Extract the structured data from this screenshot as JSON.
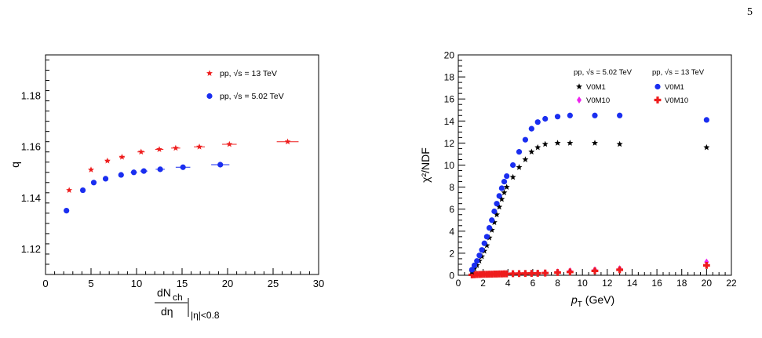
{
  "page_number": "5",
  "chart_data": [
    {
      "type": "scatter",
      "title": "",
      "ylabel": "q",
      "xlabel_num": "dN",
      "xlabel_num_sub": "ch",
      "xlabel_den": "dη",
      "xlabel_cond": "|η|<0.8",
      "xlim": [
        0,
        30
      ],
      "ylim": [
        1.11,
        1.196
      ],
      "xticks": [
        "0",
        "5",
        "10",
        "15",
        "20",
        "25",
        "30"
      ],
      "yticks": [
        "1.12",
        "1.14",
        "1.16",
        "1.18"
      ],
      "legend_position": "top-right",
      "series": [
        {
          "name_prefix": "pp, ",
          "name_suffix": " = 13 TeV",
          "marker": "star",
          "color": "#ee1c1c",
          "x": [
            2.6,
            5.0,
            6.8,
            8.4,
            10.5,
            12.5,
            14.3,
            16.9,
            20.2,
            26.6
          ],
          "y": [
            1.143,
            1.151,
            1.1545,
            1.156,
            1.158,
            1.159,
            1.1595,
            1.16,
            1.161,
            1.162
          ],
          "xerr": [
            0.15,
            0.15,
            0.25,
            0.3,
            0.4,
            0.45,
            0.5,
            0.6,
            0.8,
            1.2
          ]
        },
        {
          "name_prefix": "pp, ",
          "name_suffix": " = 5.02 TeV",
          "marker": "circle",
          "color": "#1a2ef0",
          "x": [
            2.3,
            4.1,
            5.3,
            6.6,
            8.3,
            9.7,
            10.8,
            12.6,
            15.1,
            19.2
          ],
          "y": [
            1.135,
            1.143,
            1.146,
            1.1475,
            1.149,
            1.15,
            1.1505,
            1.1512,
            1.152,
            1.153
          ],
          "xerr": [
            0.1,
            0.15,
            0.2,
            0.25,
            0.3,
            0.35,
            0.4,
            0.5,
            0.8,
            1.0
          ]
        }
      ]
    },
    {
      "type": "scatter",
      "title": "",
      "ylabel": "χ²/NDF",
      "xlabel": "p",
      "xlabel_sub": "T",
      "xlabel_unit": " (GeV)",
      "xlim": [
        0,
        22
      ],
      "ylim": [
        0,
        20
      ],
      "xticks": [
        "0",
        "2",
        "4",
        "6",
        "8",
        "10",
        "12",
        "14",
        "16",
        "18",
        "20",
        "22"
      ],
      "yticks": [
        "0",
        "2",
        "4",
        "6",
        "8",
        "10",
        "12",
        "14",
        "16",
        "18",
        "20"
      ],
      "legend_position": "top-right",
      "legend_headers": [
        {
          "prefix": "pp, ",
          "suffix": " = 5.02 TeV"
        },
        {
          "prefix": "pp, ",
          "suffix": " = 13 TeV"
        }
      ],
      "series": [
        {
          "name": "V0M1",
          "energy": "5.02 TeV",
          "marker": "star",
          "color": "#000000",
          "x": [
            1.1,
            1.3,
            1.5,
            1.7,
            1.9,
            2.1,
            2.3,
            2.5,
            2.7,
            2.9,
            3.1,
            3.3,
            3.5,
            3.7,
            3.9,
            4.4,
            4.9,
            5.4,
            5.9,
            6.4,
            7.0,
            8.0,
            9.0,
            11.0,
            13.0,
            20.0
          ],
          "y": [
            0.3,
            0.6,
            0.9,
            1.3,
            1.7,
            2.2,
            2.7,
            3.4,
            4.1,
            4.8,
            5.5,
            6.2,
            6.9,
            7.5,
            8.0,
            8.9,
            9.8,
            10.5,
            11.2,
            11.6,
            11.9,
            12.0,
            12.0,
            12.0,
            11.9,
            11.6
          ]
        },
        {
          "name": "V0M10",
          "energy": "5.02 TeV",
          "marker": "diamond",
          "color": "#ee22ee",
          "x": [
            1.1,
            1.3,
            1.5,
            1.7,
            1.9,
            2.1,
            2.3,
            2.5,
            2.7,
            2.9,
            3.1,
            3.3,
            3.5,
            3.7,
            3.9,
            4.4,
            4.9,
            5.4,
            5.9,
            6.4,
            7.0,
            8.0,
            9.0,
            11.0,
            13.0,
            20.0
          ],
          "y": [
            0.05,
            0.06,
            0.07,
            0.08,
            0.09,
            0.1,
            0.1,
            0.11,
            0.12,
            0.12,
            0.13,
            0.13,
            0.14,
            0.14,
            0.15,
            0.16,
            0.17,
            0.18,
            0.19,
            0.2,
            0.22,
            0.3,
            0.4,
            0.5,
            0.6,
            1.2
          ]
        },
        {
          "name": "V0M1",
          "energy": "13 TeV",
          "marker": "circle",
          "color": "#1a2ef0",
          "x": [
            1.1,
            1.3,
            1.5,
            1.7,
            1.9,
            2.1,
            2.3,
            2.5,
            2.7,
            2.9,
            3.1,
            3.3,
            3.5,
            3.7,
            3.9,
            4.4,
            4.9,
            5.4,
            5.9,
            6.4,
            7.0,
            8.0,
            9.0,
            11.0,
            13.0,
            20.0
          ],
          "y": [
            0.5,
            0.9,
            1.3,
            1.8,
            2.3,
            2.9,
            3.5,
            4.3,
            5.0,
            5.8,
            6.5,
            7.2,
            7.9,
            8.5,
            9.0,
            10.0,
            11.2,
            12.3,
            13.3,
            13.9,
            14.2,
            14.4,
            14.5,
            14.5,
            14.5,
            14.1
          ]
        },
        {
          "name": "V0M10",
          "energy": "13 TeV",
          "marker": "cross",
          "color": "#ee1c1c",
          "x": [
            1.1,
            1.3,
            1.5,
            1.7,
            1.9,
            2.1,
            2.3,
            2.5,
            2.7,
            2.9,
            3.1,
            3.3,
            3.5,
            3.7,
            3.9,
            4.4,
            4.9,
            5.4,
            5.9,
            6.4,
            7.0,
            8.0,
            9.0,
            11.0,
            13.0,
            20.0
          ],
          "y": [
            0.04,
            0.05,
            0.06,
            0.07,
            0.08,
            0.09,
            0.09,
            0.1,
            0.1,
            0.11,
            0.11,
            0.12,
            0.12,
            0.13,
            0.13,
            0.14,
            0.15,
            0.16,
            0.17,
            0.18,
            0.2,
            0.25,
            0.3,
            0.4,
            0.5,
            0.9
          ]
        }
      ]
    }
  ]
}
